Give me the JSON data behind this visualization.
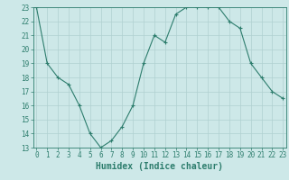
{
  "x": [
    0,
    1,
    2,
    3,
    4,
    5,
    6,
    7,
    8,
    9,
    10,
    11,
    12,
    13,
    14,
    15,
    16,
    17,
    18,
    19,
    20,
    21,
    22,
    23
  ],
  "y": [
    23,
    19,
    18,
    17.5,
    16,
    14,
    13,
    13.5,
    14.5,
    16,
    19,
    21,
    20.5,
    22.5,
    23,
    23,
    23,
    23,
    22,
    21.5,
    19,
    18,
    17,
    16.5
  ],
  "xlim": [
    0,
    23
  ],
  "ylim": [
    13,
    23
  ],
  "yticks": [
    13,
    14,
    15,
    16,
    17,
    18,
    19,
    20,
    21,
    22,
    23
  ],
  "xticks": [
    0,
    1,
    2,
    3,
    4,
    5,
    6,
    7,
    8,
    9,
    10,
    11,
    12,
    13,
    14,
    15,
    16,
    17,
    18,
    19,
    20,
    21,
    22,
    23
  ],
  "xlabel": "Humidex (Indice chaleur)",
  "line_color": "#2d7d6d",
  "marker": "+",
  "marker_color": "#2d7d6d",
  "bg_color": "#cde8e8",
  "grid_color": "#b0d0d0",
  "axis_color": "#2d7d6d",
  "xlabel_fontsize": 7,
  "tick_fontsize": 5.5
}
